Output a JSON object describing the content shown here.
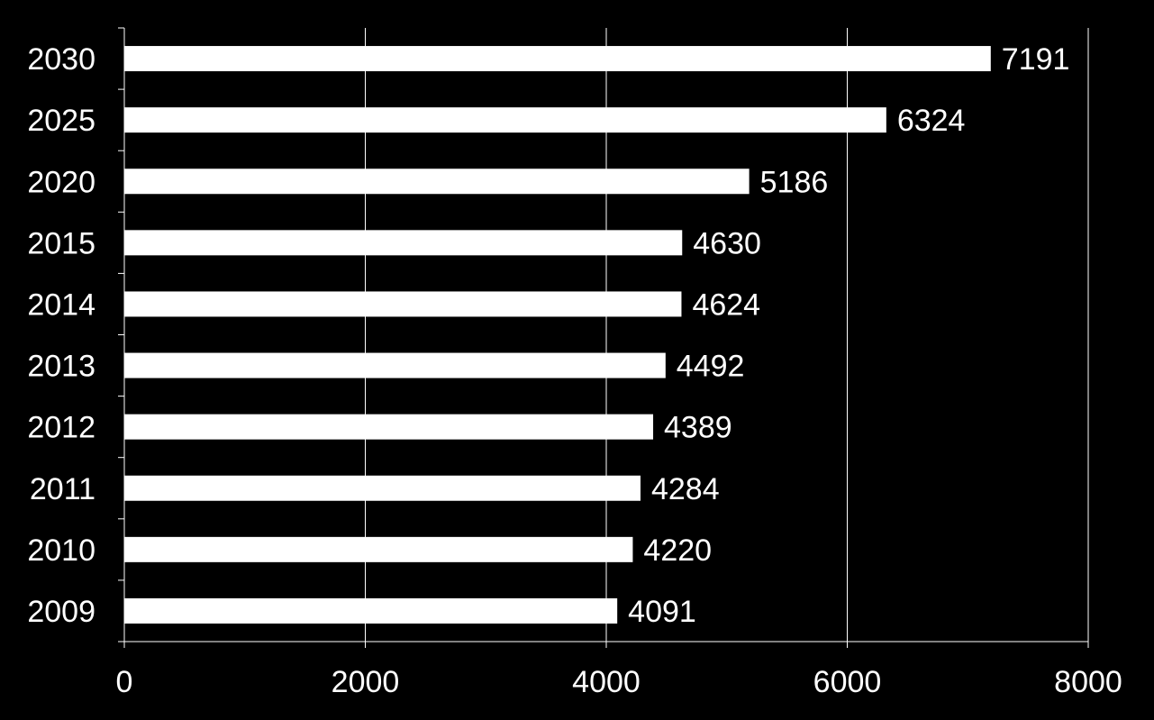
{
  "chart_data": {
    "type": "bar",
    "orientation": "horizontal",
    "title": "",
    "xlabel": "",
    "ylabel": "",
    "categories": [
      "2030",
      "2025",
      "2020",
      "2015",
      "2014",
      "2013",
      "2012",
      "2011",
      "2010",
      "2009"
    ],
    "values": [
      7191,
      6324,
      5186,
      4630,
      4624,
      4492,
      4389,
      4284,
      4220,
      4091
    ],
    "xlim": [
      0,
      8000
    ],
    "x_ticks": [
      "0",
      "2000",
      "4000",
      "6000",
      "8000"
    ],
    "grid": "vertical",
    "legend": "none",
    "data_labels": "outside-end",
    "colors": {
      "background": "#000000",
      "bar": "#ffffff",
      "text": "#ffffff",
      "grid": "#ffffff"
    }
  }
}
